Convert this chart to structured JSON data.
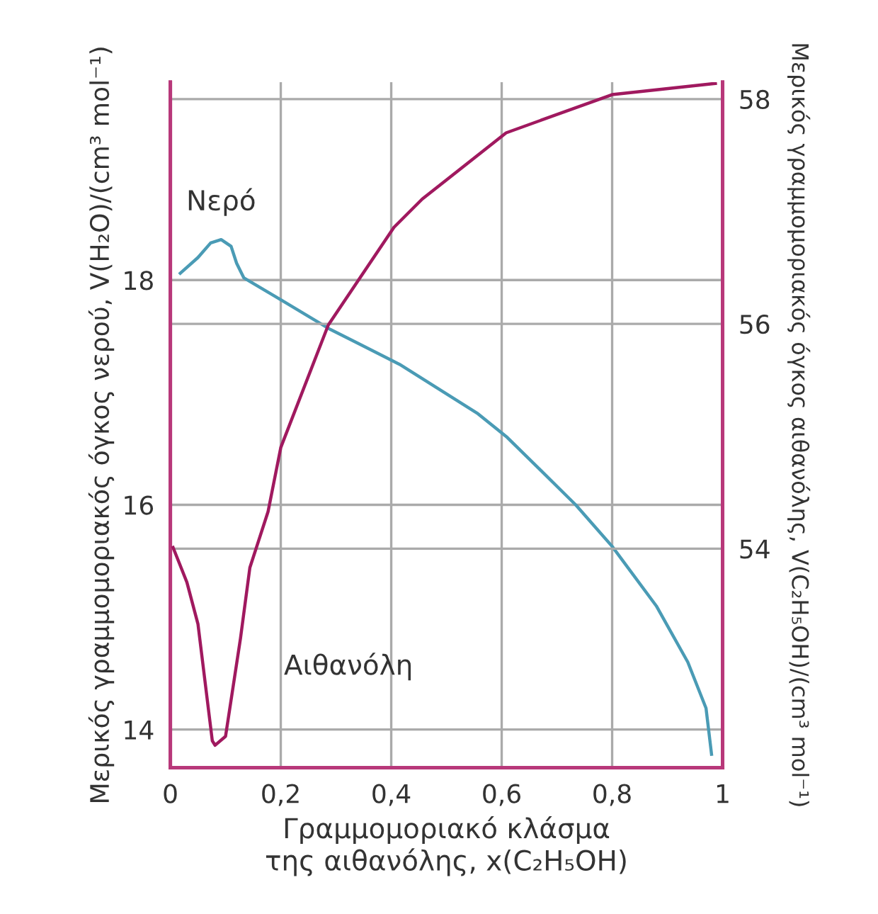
{
  "chart_data": {
    "type": "line",
    "xlabel": "Γραμμομοριακό κλάσμα\nτης αιθανόλης, x(C₂H₅OH)",
    "ylabel": "Μερικός γραμμομοριακός όγκος νερού, V(H₂O)/(cm³ mol⁻¹)",
    "y2label": "Μερικός γραμμομοριακός όγκος αιθανόλης, V(C₂H₅OH)/(cm³ mol⁻¹)",
    "xlim": [
      0,
      1
    ],
    "xticks": [
      0,
      {
        "value": 0.2,
        "label": "0,2"
      },
      {
        "value": 0.4,
        "label": "0,4"
      },
      {
        "value": 0.6,
        "label": "0,6"
      },
      {
        "value": 0.8,
        "label": "0,8"
      },
      1
    ],
    "ylim": [
      13.66,
      19.76
    ],
    "yticks": [
      14,
      16,
      18
    ],
    "y2lim": [
      52.05,
      58.15
    ],
    "y2ticks": [
      54,
      56,
      58
    ],
    "grid": true,
    "series": [
      {
        "name": "Νερό",
        "color": "#4a9bb5",
        "axis": "y",
        "x": [
          0.018,
          0.05,
          0.073,
          0.092,
          0.11,
          0.12,
          0.133,
          0.205,
          0.29,
          0.415,
          0.557,
          0.61,
          0.734,
          0.8,
          0.88,
          0.937,
          0.97,
          0.98
        ],
        "values": [
          18.06,
          18.2,
          18.33,
          18.36,
          18.3,
          18.15,
          18.02,
          17.81,
          17.56,
          17.25,
          16.81,
          16.6,
          16.0,
          15.63,
          15.1,
          14.6,
          14.19,
          13.78
        ]
      },
      {
        "name": "Αιθανόλη",
        "color": "#a0195f",
        "axis": "y2",
        "x": [
          0.005,
          0.03,
          0.05,
          0.076,
          0.081,
          0.1,
          0.127,
          0.144,
          0.177,
          0.2,
          0.286,
          0.405,
          0.456,
          0.608,
          0.8,
          0.987
        ],
        "values": [
          54.01,
          53.7,
          53.33,
          52.29,
          52.25,
          52.33,
          53.2,
          53.83,
          54.33,
          54.9,
          55.99,
          56.86,
          57.11,
          57.7,
          58.04,
          58.14
        ]
      }
    ]
  }
}
